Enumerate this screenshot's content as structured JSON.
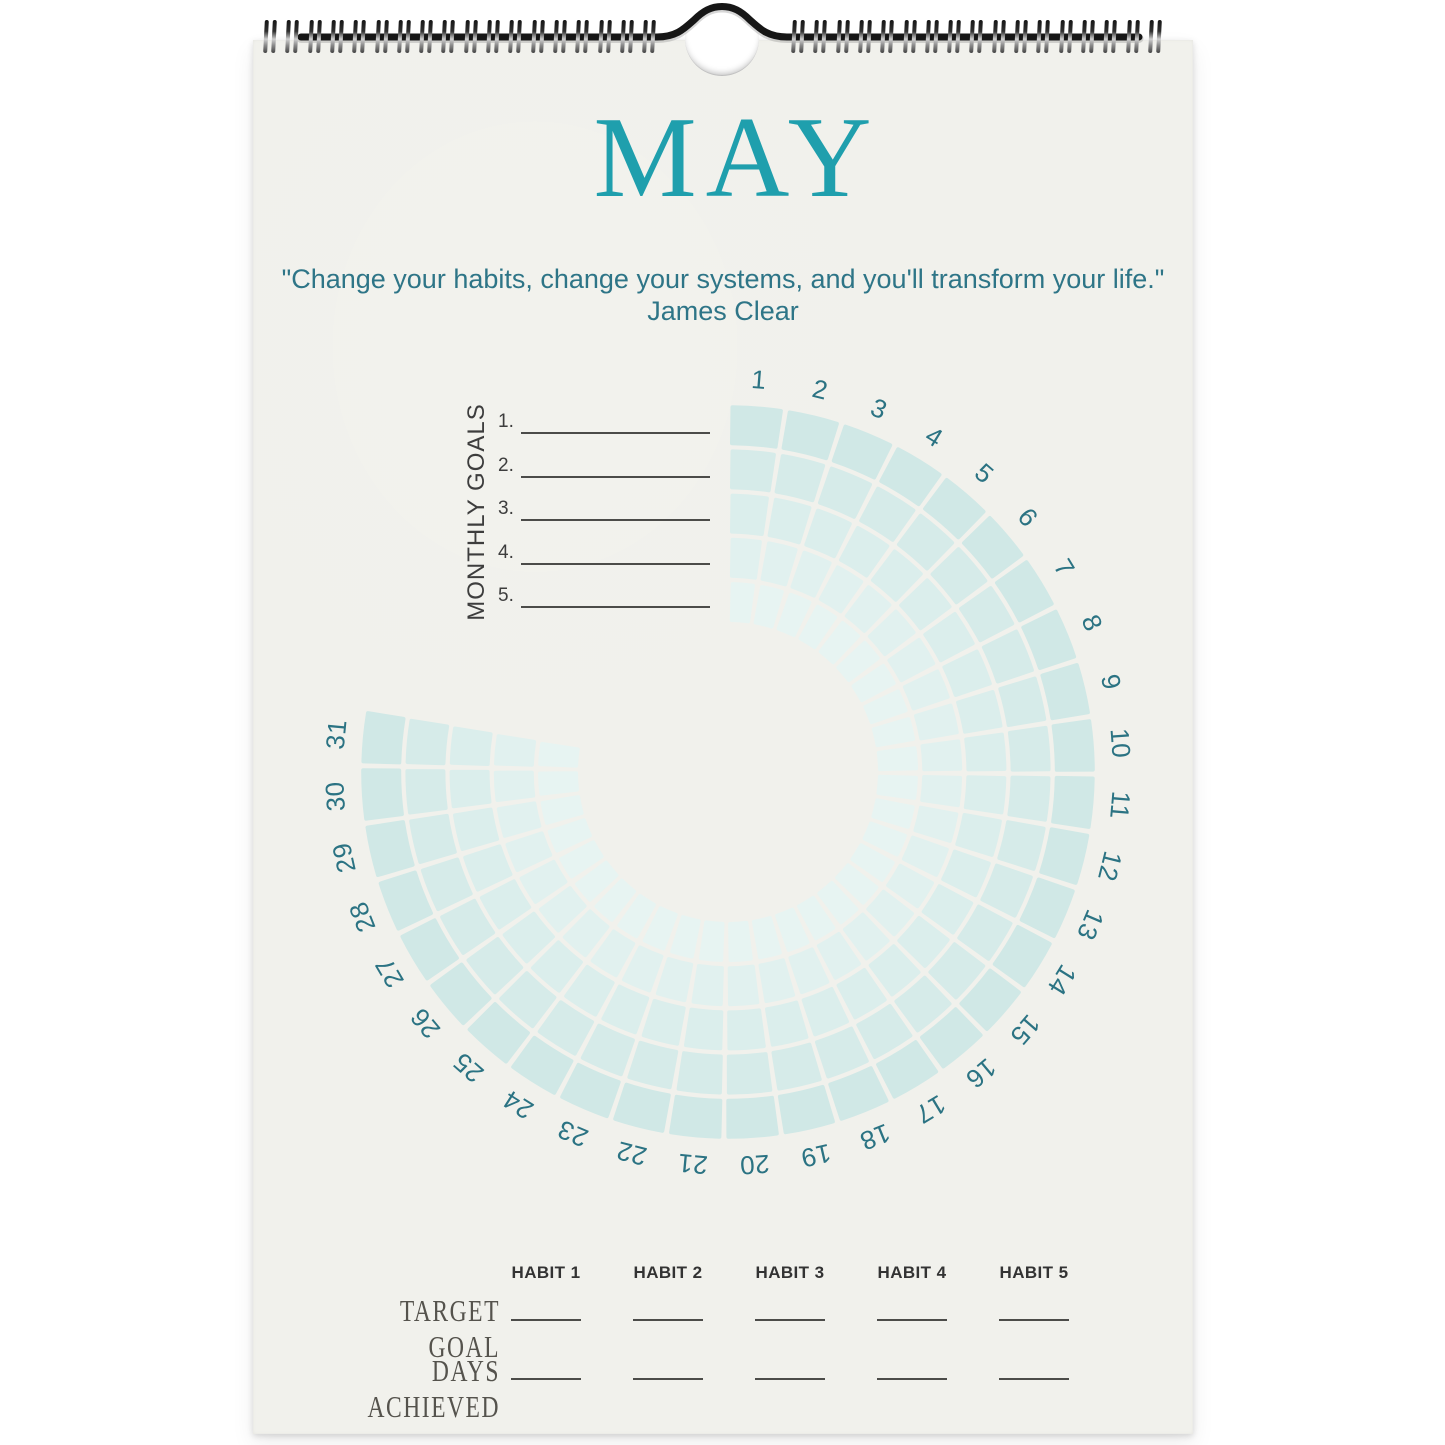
{
  "page": {
    "month_title": "MAY",
    "quote": "\"Change your habits, change your systems, and you'll transform your life.\"",
    "quote_author": "James Clear"
  },
  "monthly_goals": {
    "heading": "MONTHLY GOALS",
    "line_numbers": [
      "1.",
      "2.",
      "3.",
      "4.",
      "5."
    ]
  },
  "tracker": {
    "type": "radial-habit-tracker",
    "rings_per_day": 5,
    "all_cells_blank": true,
    "day_labels": [
      "1",
      "2",
      "3",
      "4",
      "5",
      "6",
      "7",
      "8",
      "9",
      "10",
      "11",
      "12",
      "13",
      "14",
      "15",
      "16",
      "17",
      "18",
      "19",
      "20",
      "21",
      "22",
      "23",
      "24",
      "25",
      "26",
      "27",
      "28",
      "29",
      "30",
      "31"
    ],
    "ring_colors_outer_to_inner": [
      "#d0e8e6",
      "#d6ebe9",
      "#dbeeec",
      "#e1f1ef",
      "#e7f4f2"
    ],
    "day_label_color": "#2b7383"
  },
  "habit_table": {
    "column_headers": [
      "HABIT 1",
      "HABIT 2",
      "HABIT 3",
      "HABIT 4",
      "HABIT 5"
    ],
    "row_labels": [
      "TARGET GOAL",
      "DAYS ACHIEVED"
    ]
  },
  "colors": {
    "title": "#1f9fad",
    "quote": "#2e7587",
    "page_bg": "#f1f1ec",
    "goal_text": "#3d3d3d",
    "table_text": "#333333",
    "serif_label": "#55534d",
    "rule": "#4c4c49"
  }
}
